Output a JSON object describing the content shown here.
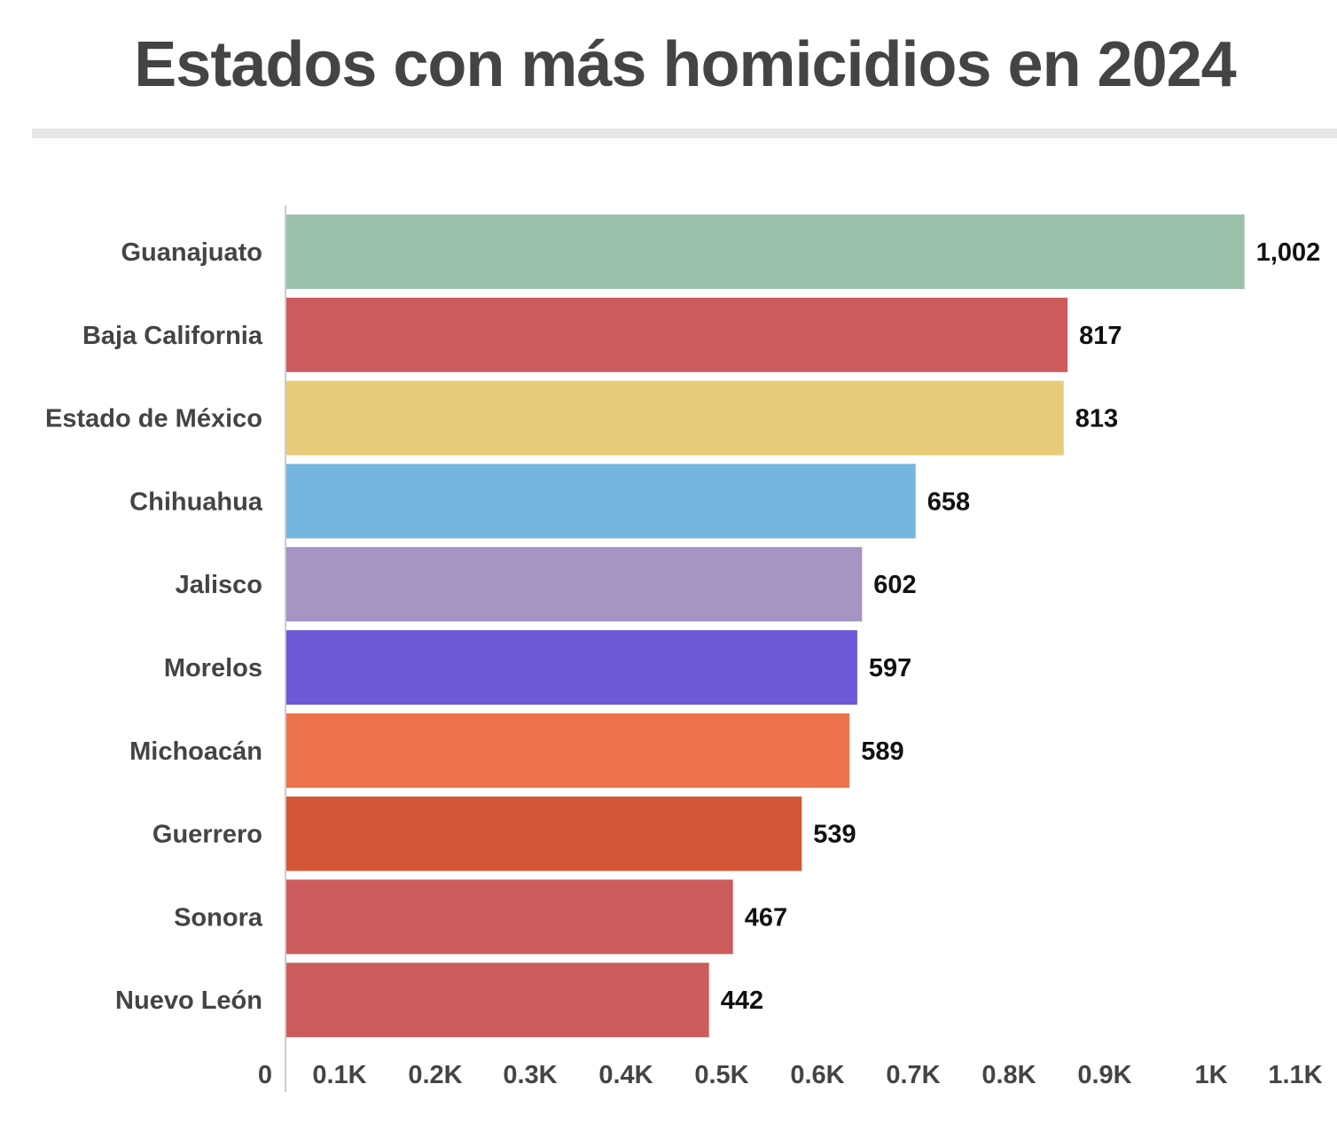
{
  "chart_data": {
    "type": "bar",
    "orientation": "horizontal",
    "title": "Estados con más homicidios en 2024",
    "xlabel": "",
    "ylabel": "",
    "categories": [
      "Guanajuato",
      "Baja California",
      "Estado de México",
      "Chihuahua",
      "Jalisco",
      "Morelos",
      "Michoacán",
      "Guerrero",
      "Sonora",
      "Nuevo León"
    ],
    "values": [
      1002,
      817,
      813,
      658,
      602,
      597,
      589,
      539,
      467,
      442
    ],
    "value_labels": [
      "1,002",
      "817",
      "813",
      "658",
      "602",
      "597",
      "589",
      "539",
      "467",
      "442"
    ],
    "colors": [
      "#9bc1aa",
      "#cc5c5c",
      "#e9cc7a",
      "#75b5df",
      "#a694c3",
      "#6b59d6",
      "#ec734b",
      "#d35736",
      "#cc5c5c",
      "#cc5c5c"
    ],
    "xlim": [
      0,
      1100
    ],
    "xticks": [
      0,
      100,
      200,
      300,
      400,
      500,
      600,
      700,
      800,
      900,
      1000,
      1100
    ],
    "xtick_labels": [
      "0",
      "0.1K",
      "0.2K",
      "0.3K",
      "0.4K",
      "0.5K",
      "0.6K",
      "0.7K",
      "0.8K",
      "0.9K",
      "1K",
      "1.1K"
    ],
    "grid": false,
    "legend": "none"
  }
}
